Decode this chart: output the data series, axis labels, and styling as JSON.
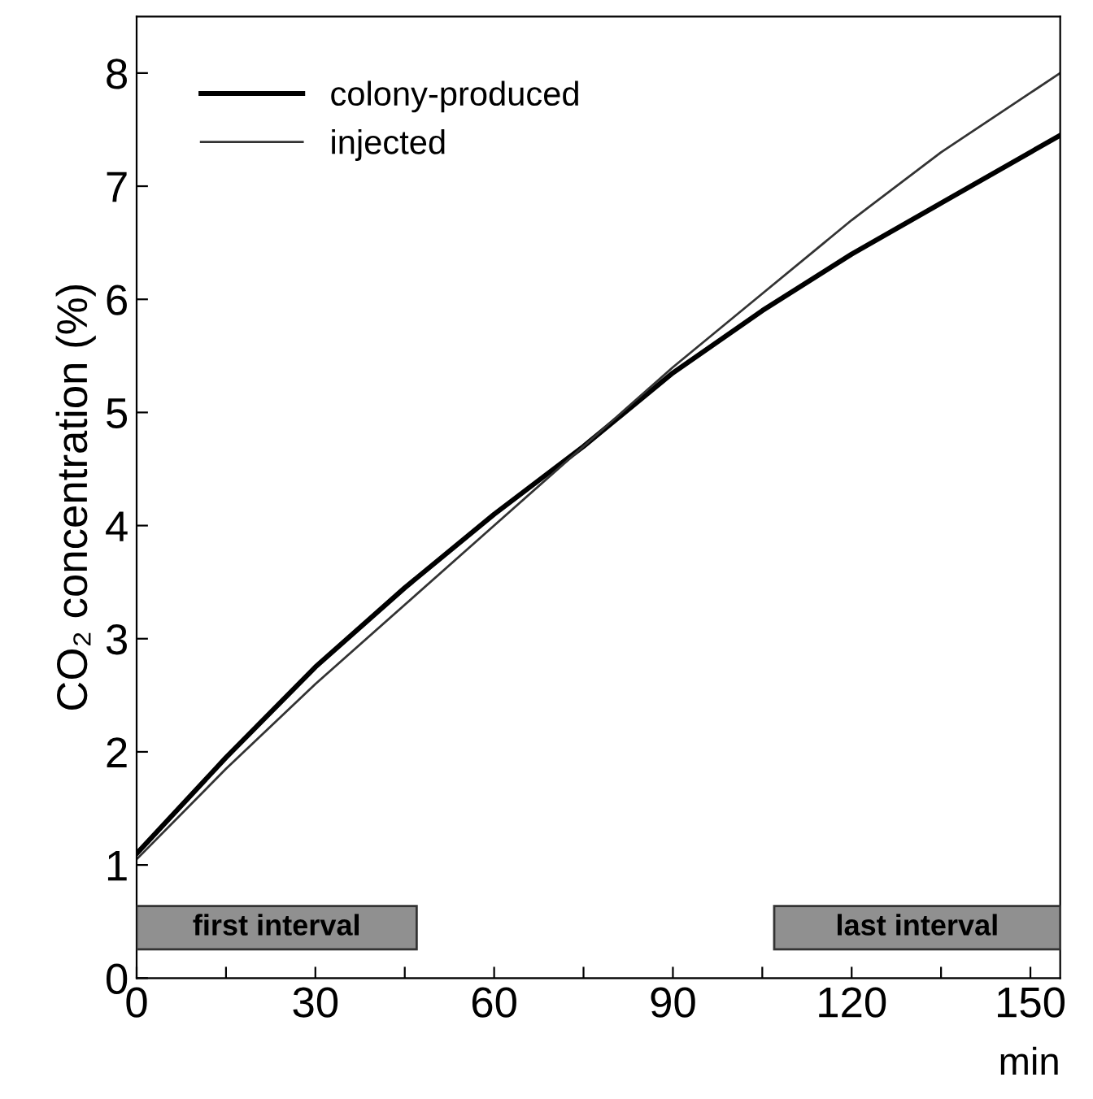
{
  "chart_data": {
    "type": "line",
    "xlabel": "min",
    "ylabel": "CO₂ concentration (%)",
    "xlim": [
      0,
      155
    ],
    "ylim": [
      0,
      8.5
    ],
    "xticks": [
      0,
      {
        "value": 15,
        "label": null
      },
      30,
      {
        "value": 45,
        "label": null
      },
      60,
      {
        "value": 75,
        "label": null
      },
      90,
      {
        "value": 105,
        "label": null
      },
      120,
      {
        "value": 135,
        "label": null
      },
      150
    ],
    "yticks": [
      0,
      1,
      2,
      3,
      4,
      5,
      6,
      7,
      8
    ],
    "legend": "top left",
    "grid": false,
    "series": [
      {
        "name": "colony-produced",
        "color": "#000000",
        "x": [
          0,
          15,
          30,
          45,
          60,
          75,
          90,
          105,
          120,
          135,
          155
        ],
        "values": [
          1.1,
          1.95,
          2.75,
          3.45,
          4.1,
          4.7,
          5.35,
          5.9,
          6.4,
          6.85,
          7.45
        ]
      },
      {
        "name": "injected",
        "color": "#333333",
        "x": [
          0,
          15,
          30,
          45,
          60,
          75,
          90,
          105,
          120,
          135,
          155
        ],
        "values": [
          1.05,
          1.85,
          2.6,
          3.3,
          4.0,
          4.7,
          5.4,
          6.05,
          6.7,
          7.3,
          8.0
        ]
      }
    ],
    "bands": [
      {
        "axis": "x",
        "from": 0,
        "to": 47,
        "label": "first interval",
        "color": "#909090"
      },
      {
        "axis": "x",
        "from": 107,
        "to": 155,
        "label": "last interval",
        "color": "#909090"
      }
    ]
  }
}
